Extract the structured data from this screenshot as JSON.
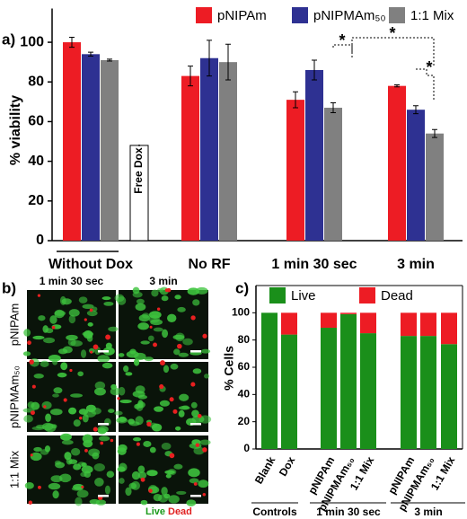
{
  "chart_data": [
    {
      "type": "bar",
      "label": "a)",
      "ylabel": "% viability",
      "categories": [
        "Without Dox",
        "No RF",
        "1 min 30 sec",
        "3 min"
      ],
      "series": [
        {
          "name": "pNIPAm",
          "color": "#ed1c24",
          "values": [
            100,
            83,
            71,
            78
          ],
          "errors": [
            2.5,
            5,
            4,
            0.5
          ]
        },
        {
          "name": "pNIPMAm₅₀",
          "color": "#2e3192",
          "values": [
            94,
            92,
            86,
            66
          ],
          "errors": [
            1,
            9,
            5,
            2
          ]
        },
        {
          "name": "1:1 Mix",
          "color": "#808080",
          "values": [
            91,
            90,
            67,
            54
          ],
          "errors": [
            0.5,
            9,
            2.5,
            2
          ]
        }
      ],
      "extra_bar": {
        "label": "Free Dox",
        "value": 48,
        "error": 0.5,
        "color": "#ffffff"
      },
      "annotations": [
        "*",
        "*",
        "*"
      ],
      "ylim": [
        0,
        117
      ],
      "yticks": [
        0,
        20,
        40,
        60,
        80,
        100
      ]
    },
    {
      "type": "stacked_bar",
      "label": "c)",
      "ylabel": "% Cells",
      "categories": [
        "Blank",
        "Dox",
        "pNIPAm",
        "pNIPMAm₅₀",
        "1:1 Mix",
        "pNIPAm",
        "pNIPMAm₅₀",
        "1:1 Mix"
      ],
      "groups": [
        "Controls",
        "1 min 30 sec",
        "3 min"
      ],
      "series": [
        {
          "name": "Live",
          "color": "#1a8f1a",
          "values": [
            100,
            84,
            89,
            99,
            85,
            83,
            83,
            77
          ]
        },
        {
          "name": "Dead",
          "color": "#ed1c24",
          "values": [
            0,
            16,
            11,
            1,
            15,
            17,
            17,
            23
          ]
        }
      ],
      "ylim": [
        0,
        120
      ],
      "yticks": [
        0,
        20,
        40,
        60,
        80,
        100
      ]
    }
  ],
  "micrographs": {
    "label": "b)",
    "columns": [
      "1 min 30 sec",
      "3 min"
    ],
    "rows": [
      "pNIPAm",
      "pNIPMAm₅₀",
      "1:1 Mix"
    ],
    "legend": [
      "Live",
      "Dead"
    ]
  }
}
